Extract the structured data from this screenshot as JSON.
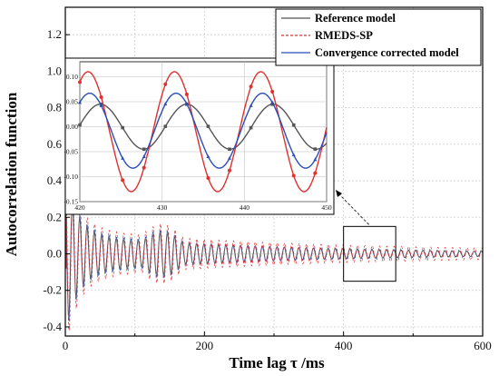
{
  "chart_data": {
    "type": "line",
    "xlabel": "Time lag τ /ms",
    "ylabel": "Autocorrelation function",
    "xlim": [
      0,
      600
    ],
    "ylim": [
      -0.45,
      1.35
    ],
    "xticks": [
      "0",
      "200",
      "400",
      "600"
    ],
    "yticks": [
      "-0.4",
      "-0.2",
      "0.0",
      "0.2",
      "0.4",
      "0.6",
      "0.8",
      "1.0",
      "1.2"
    ],
    "grid": true,
    "legend_position": "top-right",
    "series": [
      {
        "name": "Reference model",
        "color": "#555555",
        "style": "solid",
        "description_points": [
          [
            0,
            1.0
          ],
          [
            5,
            -0.4
          ],
          [
            10,
            0.32
          ],
          [
            15,
            -0.3
          ],
          [
            20,
            0.22
          ],
          [
            60,
            0.12
          ],
          [
            100,
            0.1
          ],
          [
            150,
            -0.15
          ],
          [
            200,
            0.09
          ],
          [
            300,
            0.07
          ],
          [
            400,
            0.06
          ],
          [
            450,
            0.05
          ],
          [
            600,
            0.03
          ]
        ]
      },
      {
        "name": "RMEDS-SP",
        "color": "#e03030",
        "style": "dashed",
        "description_points": [
          [
            0,
            1.0
          ],
          [
            5,
            -0.4
          ],
          [
            10,
            0.32
          ],
          [
            15,
            -0.3
          ],
          [
            20,
            0.22
          ],
          [
            60,
            0.12
          ],
          [
            120,
            0.18
          ],
          [
            150,
            -0.22
          ],
          [
            200,
            0.15
          ],
          [
            300,
            0.1
          ],
          [
            400,
            0.1
          ],
          [
            450,
            0.12
          ],
          [
            600,
            0.05
          ]
        ]
      },
      {
        "name": "Convergence corrected model",
        "color": "#2a4db8",
        "style": "solid",
        "description_points": [
          [
            0,
            1.0
          ],
          [
            5,
            -0.4
          ],
          [
            10,
            0.32
          ],
          [
            15,
            -0.3
          ],
          [
            20,
            0.22
          ],
          [
            60,
            0.12
          ],
          [
            100,
            0.1
          ],
          [
            150,
            -0.16
          ],
          [
            200,
            0.1
          ],
          [
            300,
            0.08
          ],
          [
            400,
            0.08
          ],
          [
            450,
            0.07
          ],
          [
            600,
            0.04
          ]
        ]
      }
    ],
    "inset": {
      "xlim": [
        420,
        450
      ],
      "ylim": [
        -0.15,
        0.13
      ],
      "xticks": [
        "420",
        "430",
        "440",
        "450"
      ],
      "yticks": [
        "-0.15",
        "-0.10",
        "-0.05",
        "0.00",
        "0.05",
        "0.10"
      ],
      "series": [
        {
          "name": "Reference model",
          "color": "#555555",
          "amplitude": 0.045,
          "center": 0.0,
          "phase_peak_x": 433.0
        },
        {
          "name": "RMEDS-SP",
          "color": "#e03030",
          "amplitude": 0.12,
          "center": -0.01,
          "phase_peak_x": 431.5
        },
        {
          "name": "Convergence corrected model",
          "color": "#2a4db8",
          "amplitude": 0.075,
          "center": -0.008,
          "phase_peak_x": 431.7
        }
      ],
      "period": 10.5,
      "zoom_box_xrange": [
        400,
        475
      ],
      "zoom_box_yrange": [
        -0.15,
        0.15
      ]
    }
  }
}
